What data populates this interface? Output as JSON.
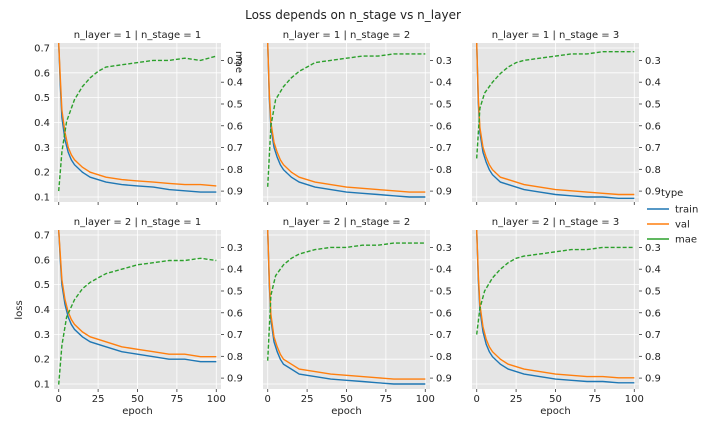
{
  "figure": {
    "title": "Loss depends on n_stage vs n_layer",
    "ylabel": "loss",
    "xlabel": "epoch",
    "right_axis_label": "mae",
    "legend_title": "type"
  },
  "chart_data": {
    "type": "line",
    "title": "Loss depends on n_stage vs n_layer",
    "xlabel": "epoch",
    "ylabel": "loss",
    "xlim": [
      -3,
      103
    ],
    "ylim": [
      0.08,
      0.72
    ],
    "y2lim": [
      0.95,
      0.22
    ],
    "y2_inverted": true,
    "grid": true,
    "legend": {
      "title": "type",
      "placement": "right",
      "entries": [
        "train",
        "val",
        "mae"
      ]
    },
    "x_ticks": [
      0,
      25,
      50,
      75,
      100
    ],
    "y_ticks": [
      0.1,
      0.2,
      0.3,
      0.4,
      0.5,
      0.6,
      0.7
    ],
    "y2_ticks": [
      0.3,
      0.4,
      0.5,
      0.6,
      0.7,
      0.8,
      0.9
    ],
    "series_style": [
      {
        "name": "train",
        "color": "#1f77b4",
        "dash": "solid"
      },
      {
        "name": "val",
        "color": "#ff7f0e",
        "dash": "solid"
      },
      {
        "name": "mae",
        "color": "#2ca02c",
        "dash": "dashed",
        "axis": "right"
      }
    ],
    "panels": [
      {
        "title": "n_layer = 1 | n_stage = 1",
        "series": [
          {
            "name": "train",
            "x": [
              0,
              1,
              2,
              4,
              6,
              8,
              10,
              15,
              20,
              30,
              40,
              50,
              60,
              70,
              80,
              90,
              100
            ],
            "y": [
              0.72,
              0.55,
              0.42,
              0.33,
              0.28,
              0.25,
              0.23,
              0.2,
              0.18,
              0.16,
              0.15,
              0.145,
              0.14,
              0.13,
              0.125,
              0.12,
              0.12
            ]
          },
          {
            "name": "val",
            "x": [
              0,
              1,
              2,
              4,
              6,
              8,
              10,
              15,
              20,
              30,
              40,
              50,
              60,
              70,
              80,
              90,
              100
            ],
            "y": [
              0.72,
              0.58,
              0.45,
              0.36,
              0.3,
              0.27,
              0.25,
              0.22,
              0.2,
              0.18,
              0.17,
              0.165,
              0.16,
              0.155,
              0.15,
              0.15,
              0.145
            ]
          },
          {
            "name": "mae",
            "x": [
              0,
              2,
              5,
              10,
              15,
              20,
              25,
              30,
              40,
              50,
              60,
              70,
              80,
              90,
              100
            ],
            "y": [
              0.9,
              0.72,
              0.58,
              0.48,
              0.42,
              0.38,
              0.35,
              0.33,
              0.32,
              0.31,
              0.3,
              0.3,
              0.29,
              0.3,
              0.28
            ]
          }
        ]
      },
      {
        "title": "n_layer = 1 | n_stage = 2",
        "series": [
          {
            "name": "train",
            "x": [
              0,
              1,
              2,
              4,
              6,
              8,
              10,
              15,
              20,
              30,
              40,
              50,
              60,
              70,
              80,
              90,
              100
            ],
            "y": [
              0.72,
              0.5,
              0.38,
              0.3,
              0.26,
              0.23,
              0.21,
              0.18,
              0.16,
              0.14,
              0.13,
              0.12,
              0.115,
              0.11,
              0.105,
              0.1,
              0.1
            ]
          },
          {
            "name": "val",
            "x": [
              0,
              1,
              2,
              4,
              6,
              8,
              10,
              15,
              20,
              30,
              40,
              50,
              60,
              70,
              80,
              90,
              100
            ],
            "y": [
              0.72,
              0.52,
              0.4,
              0.32,
              0.28,
              0.25,
              0.23,
              0.2,
              0.18,
              0.16,
              0.15,
              0.14,
              0.135,
              0.13,
              0.125,
              0.12,
              0.12
            ]
          },
          {
            "name": "mae",
            "x": [
              0,
              2,
              5,
              10,
              15,
              20,
              25,
              30,
              40,
              50,
              60,
              70,
              80,
              90,
              100
            ],
            "y": [
              0.88,
              0.6,
              0.48,
              0.42,
              0.38,
              0.35,
              0.33,
              0.31,
              0.3,
              0.29,
              0.28,
              0.28,
              0.27,
              0.27,
              0.27
            ]
          }
        ]
      },
      {
        "title": "n_layer = 1 | n_stage = 3",
        "series": [
          {
            "name": "train",
            "x": [
              0,
              1,
              2,
              4,
              6,
              8,
              10,
              15,
              20,
              30,
              40,
              50,
              60,
              70,
              80,
              90,
              100
            ],
            "y": [
              0.72,
              0.48,
              0.36,
              0.28,
              0.24,
              0.21,
              0.19,
              0.16,
              0.15,
              0.13,
              0.12,
              0.11,
              0.105,
              0.1,
              0.1,
              0.095,
              0.095
            ]
          },
          {
            "name": "val",
            "x": [
              0,
              1,
              2,
              4,
              6,
              8,
              10,
              15,
              20,
              30,
              40,
              50,
              60,
              70,
              80,
              90,
              100
            ],
            "y": [
              0.72,
              0.5,
              0.38,
              0.3,
              0.26,
              0.23,
              0.21,
              0.18,
              0.17,
              0.15,
              0.14,
              0.13,
              0.125,
              0.12,
              0.115,
              0.11,
              0.11
            ]
          },
          {
            "name": "mae",
            "x": [
              0,
              2,
              5,
              10,
              15,
              20,
              25,
              30,
              40,
              50,
              60,
              70,
              80,
              90,
              100
            ],
            "y": [
              0.75,
              0.52,
              0.45,
              0.4,
              0.36,
              0.33,
              0.31,
              0.3,
              0.29,
              0.28,
              0.27,
              0.27,
              0.26,
              0.26,
              0.26
            ]
          }
        ]
      },
      {
        "title": "n_layer = 2 | n_stage = 1",
        "series": [
          {
            "name": "train",
            "x": [
              0,
              1,
              2,
              4,
              6,
              8,
              10,
              15,
              20,
              30,
              40,
              50,
              60,
              70,
              80,
              90,
              100
            ],
            "y": [
              0.72,
              0.6,
              0.5,
              0.42,
              0.37,
              0.34,
              0.32,
              0.29,
              0.27,
              0.25,
              0.23,
              0.22,
              0.21,
              0.2,
              0.2,
              0.19,
              0.19
            ]
          },
          {
            "name": "val",
            "x": [
              0,
              1,
              2,
              4,
              6,
              8,
              10,
              15,
              20,
              30,
              40,
              50,
              60,
              70,
              80,
              90,
              100
            ],
            "y": [
              0.72,
              0.62,
              0.52,
              0.44,
              0.39,
              0.36,
              0.34,
              0.31,
              0.29,
              0.27,
              0.25,
              0.24,
              0.23,
              0.22,
              0.22,
              0.21,
              0.21
            ]
          },
          {
            "name": "mae",
            "x": [
              0,
              2,
              5,
              10,
              15,
              20,
              25,
              30,
              40,
              50,
              60,
              70,
              80,
              90,
              100
            ],
            "y": [
              0.93,
              0.75,
              0.62,
              0.54,
              0.49,
              0.46,
              0.44,
              0.42,
              0.4,
              0.38,
              0.37,
              0.36,
              0.36,
              0.35,
              0.36
            ]
          }
        ]
      },
      {
        "title": "n_layer = 2 | n_stage = 2",
        "series": [
          {
            "name": "train",
            "x": [
              0,
              1,
              2,
              4,
              6,
              8,
              10,
              15,
              20,
              30,
              40,
              50,
              60,
              70,
              80,
              90,
              100
            ],
            "y": [
              0.72,
              0.5,
              0.36,
              0.27,
              0.23,
              0.2,
              0.18,
              0.16,
              0.14,
              0.13,
              0.12,
              0.115,
              0.11,
              0.105,
              0.1,
              0.1,
              0.1
            ]
          },
          {
            "name": "val",
            "x": [
              0,
              1,
              2,
              4,
              6,
              8,
              10,
              15,
              20,
              30,
              40,
              50,
              60,
              70,
              80,
              90,
              100
            ],
            "y": [
              0.72,
              0.52,
              0.38,
              0.29,
              0.25,
              0.22,
              0.2,
              0.18,
              0.16,
              0.15,
              0.14,
              0.135,
              0.13,
              0.125,
              0.12,
              0.12,
              0.12
            ]
          },
          {
            "name": "mae",
            "x": [
              0,
              2,
              5,
              10,
              15,
              20,
              25,
              30,
              40,
              50,
              60,
              70,
              80,
              90,
              100
            ],
            "y": [
              0.82,
              0.52,
              0.43,
              0.38,
              0.35,
              0.33,
              0.32,
              0.31,
              0.3,
              0.3,
              0.29,
              0.29,
              0.28,
              0.28,
              0.28
            ]
          }
        ]
      },
      {
        "title": "n_layer = 2 | n_stage = 3",
        "series": [
          {
            "name": "train",
            "x": [
              0,
              1,
              2,
              4,
              6,
              8,
              10,
              15,
              20,
              30,
              40,
              50,
              60,
              70,
              80,
              90,
              100
            ],
            "y": [
              0.72,
              0.52,
              0.4,
              0.31,
              0.26,
              0.23,
              0.21,
              0.18,
              0.16,
              0.14,
              0.13,
              0.12,
              0.115,
              0.11,
              0.11,
              0.105,
              0.105
            ]
          },
          {
            "name": "val",
            "x": [
              0,
              1,
              2,
              4,
              6,
              8,
              10,
              15,
              20,
              30,
              40,
              50,
              60,
              70,
              80,
              90,
              100
            ],
            "y": [
              0.72,
              0.54,
              0.42,
              0.33,
              0.28,
              0.25,
              0.23,
              0.2,
              0.18,
              0.16,
              0.15,
              0.14,
              0.135,
              0.13,
              0.13,
              0.125,
              0.125
            ]
          },
          {
            "name": "mae",
            "x": [
              0,
              2,
              5,
              10,
              15,
              20,
              25,
              30,
              40,
              50,
              60,
              70,
              80,
              90,
              100
            ],
            "y": [
              0.7,
              0.58,
              0.5,
              0.44,
              0.4,
              0.37,
              0.35,
              0.34,
              0.33,
              0.32,
              0.31,
              0.31,
              0.3,
              0.3,
              0.3
            ]
          }
        ]
      }
    ]
  }
}
